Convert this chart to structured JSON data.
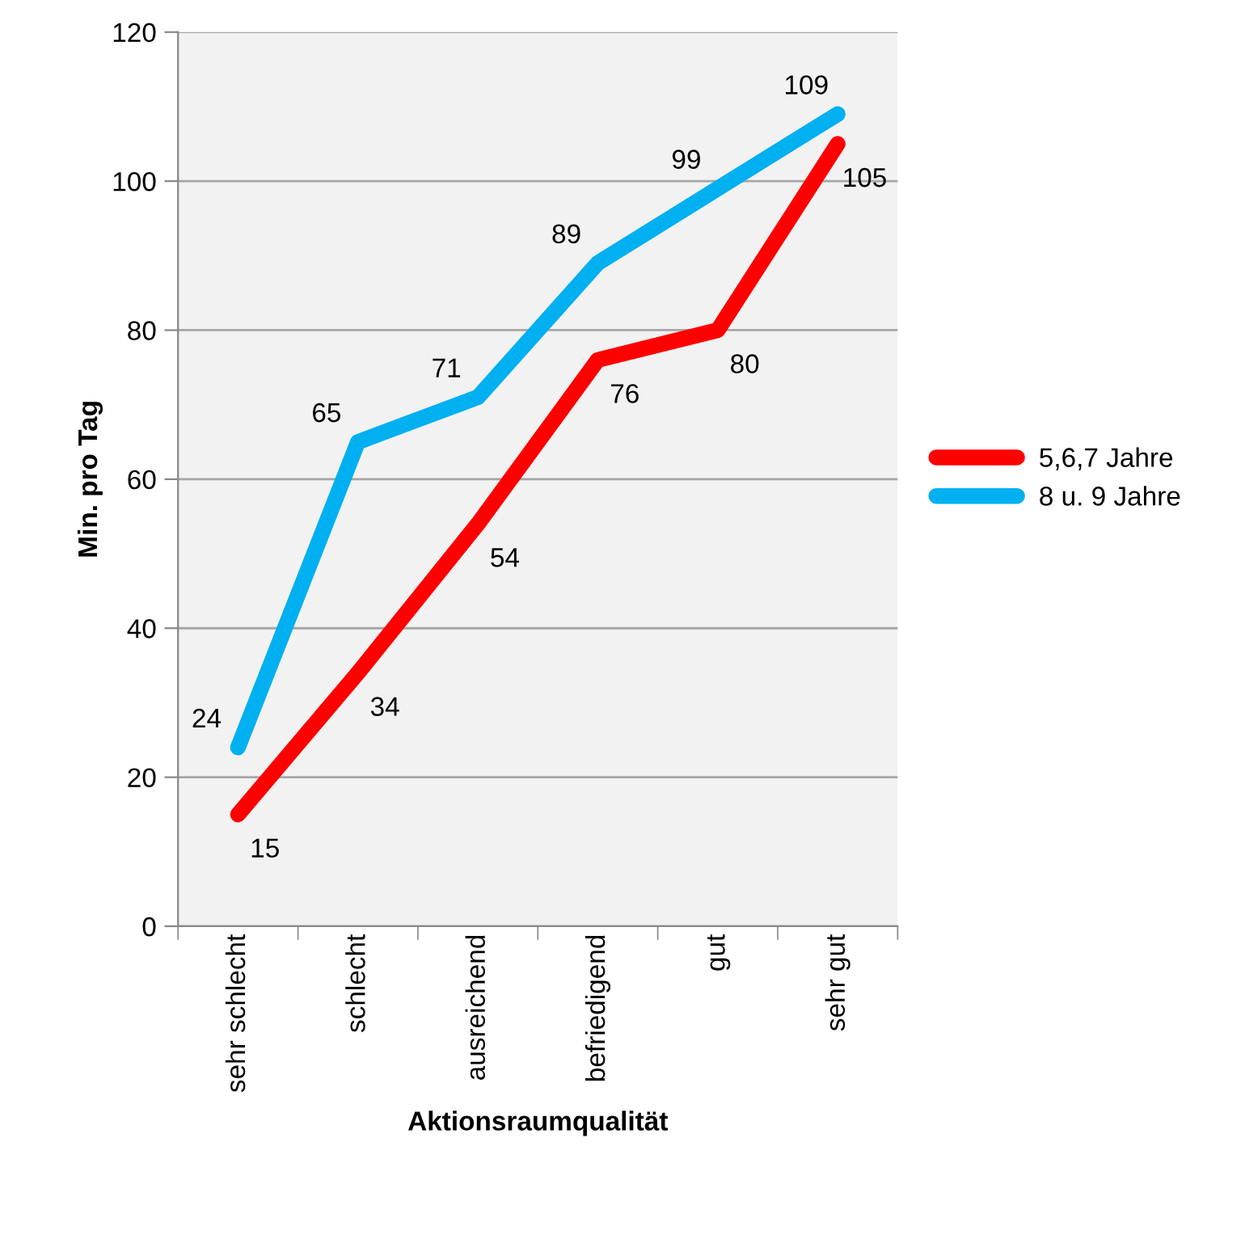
{
  "chart_data": {
    "type": "line",
    "xlabel": "Aktionsraumqualität",
    "ylabel": "Min. pro Tag",
    "categories": [
      "sehr schlecht",
      "schlecht",
      "ausreichend",
      "befriedigend",
      "gut",
      "sehr gut"
    ],
    "series": [
      {
        "name": "5,6,7 Jahre",
        "color": "#ff0000",
        "values": [
          15,
          34,
          54,
          76,
          80,
          105
        ]
      },
      {
        "name": "8 u. 9 Jahre",
        "color": "#00b0f0",
        "values": [
          24,
          65,
          71,
          89,
          99,
          109
        ]
      }
    ],
    "ylim": [
      0,
      120
    ],
    "yticks": [
      0,
      20,
      40,
      60,
      80,
      100,
      120
    ],
    "grid": "y",
    "legend": "right",
    "data_labels": true,
    "marker": "none",
    "line_style": "solid"
  }
}
